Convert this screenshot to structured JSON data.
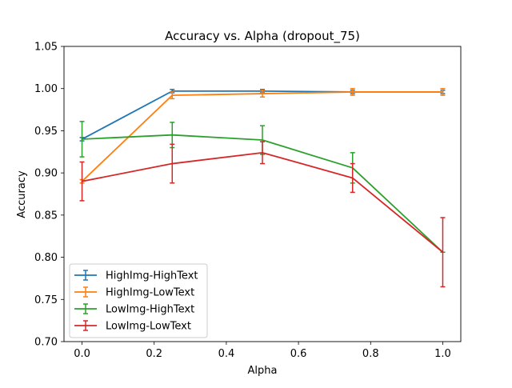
{
  "chart_data": {
    "type": "line",
    "title": "Accuracy vs. Alpha (dropout_75)",
    "xlabel": "Alpha",
    "ylabel": "Accuracy",
    "xlim": [
      -0.05,
      1.05
    ],
    "ylim": [
      0.7,
      1.05
    ],
    "xticks": [
      "0.0",
      "0.2",
      "0.4",
      "0.6",
      "0.8",
      "1.0"
    ],
    "yticks": [
      "0.70",
      "0.75",
      "0.80",
      "0.85",
      "0.90",
      "0.95",
      "1.00",
      "1.05"
    ],
    "grid": false,
    "legend_position": "lower-left",
    "x": [
      0.0,
      0.25,
      0.5,
      0.75,
      1.0
    ],
    "series": [
      {
        "name": "HighImg-HighText",
        "color": "#1f77b4",
        "values": [
          0.94,
          0.997,
          0.997,
          0.996,
          0.996
        ],
        "errors": [
          0.002,
          0.002,
          0.002,
          0.002,
          0.002
        ]
      },
      {
        "name": "HighImg-LowText",
        "color": "#ff7f0e",
        "values": [
          0.89,
          0.992,
          0.994,
          0.996,
          0.996
        ],
        "errors": [
          0.002,
          0.004,
          0.004,
          0.004,
          0.004
        ]
      },
      {
        "name": "LowImg-HighText",
        "color": "#2ca02c",
        "values": [
          0.94,
          0.945,
          0.939,
          0.906,
          0.806
        ],
        "errors": [
          0.021,
          0.015,
          0.017,
          0.018,
          0.0
        ]
      },
      {
        "name": "LowImg-LowText",
        "color": "#d62728",
        "values": [
          0.89,
          0.911,
          0.924,
          0.894,
          0.806
        ],
        "errors": [
          0.023,
          0.023,
          0.013,
          0.017,
          0.041
        ]
      }
    ]
  }
}
